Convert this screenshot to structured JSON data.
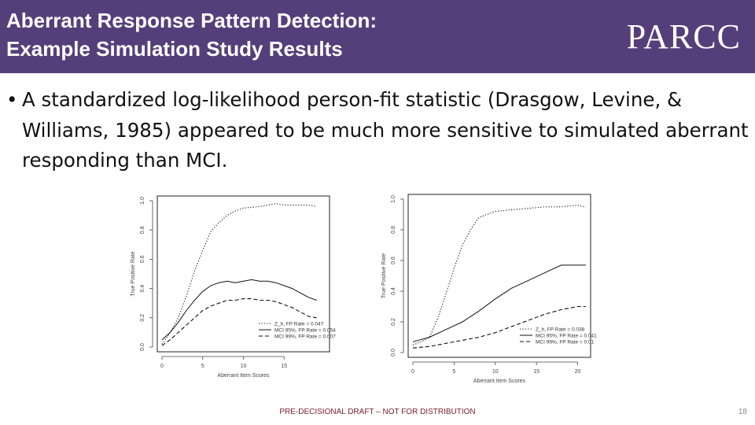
{
  "header": {
    "title_line1": "Aberrant Response Pattern Detection:",
    "title_line2": "Example Simulation Study Results",
    "logo": "PARCC",
    "bg_color": "#543f7a"
  },
  "bullet": {
    "mark": "•",
    "text": "A standardized log-likelihood person-fit statistic (Drasgow, Levine, & Williams, 1985) appeared to be much more sensitive to simulated aberrant responding than MCI."
  },
  "footer": {
    "note": "PRE-DECISIONAL DRAFT – NOT FOR DISTRIBUTION",
    "page_number": "18"
  },
  "chart_data": [
    {
      "type": "line",
      "title": "",
      "xlabel": "Aberrant Item Scores",
      "ylabel": "True Positive Rate",
      "xlim": [
        0,
        20
      ],
      "ylim": [
        0,
        1.0
      ],
      "x_ticks": [
        0,
        5,
        10,
        15
      ],
      "y_ticks": [
        0.0,
        0.2,
        0.4,
        0.6,
        0.8,
        1.0
      ],
      "y_tick_labels": [
        "0.0",
        "0.2",
        "0.4",
        "0.6",
        "0.8",
        "1.0"
      ],
      "legend_position": "bottom-right",
      "series": [
        {
          "name": "Z_h, FP Rate = 0.047",
          "style": "dotted",
          "x": [
            0,
            1,
            2,
            3,
            4,
            5,
            6,
            7,
            8,
            9,
            10,
            12,
            14,
            15,
            16,
            18,
            19
          ],
          "y": [
            0.02,
            0.1,
            0.2,
            0.35,
            0.52,
            0.66,
            0.79,
            0.85,
            0.9,
            0.93,
            0.95,
            0.96,
            0.98,
            0.97,
            0.97,
            0.97,
            0.96
          ]
        },
        {
          "name": "MCI 95%, FP Rate = 0.054",
          "style": "solid",
          "x": [
            0,
            1,
            2,
            3,
            4,
            5,
            6,
            7,
            8,
            9,
            10,
            11,
            12,
            13,
            14,
            15,
            16,
            17,
            18,
            19
          ],
          "y": [
            0.05,
            0.1,
            0.17,
            0.25,
            0.32,
            0.38,
            0.42,
            0.44,
            0.45,
            0.44,
            0.45,
            0.46,
            0.45,
            0.45,
            0.44,
            0.42,
            0.4,
            0.37,
            0.34,
            0.32
          ]
        },
        {
          "name": "MCI 99%, FP Rate = 0.007",
          "style": "dashed",
          "x": [
            0,
            1,
            2,
            3,
            4,
            5,
            6,
            7,
            8,
            9,
            10,
            11,
            12,
            13,
            14,
            15,
            16,
            17,
            18,
            19
          ],
          "y": [
            0.01,
            0.05,
            0.1,
            0.15,
            0.2,
            0.25,
            0.28,
            0.3,
            0.32,
            0.32,
            0.33,
            0.33,
            0.32,
            0.32,
            0.31,
            0.29,
            0.27,
            0.24,
            0.21,
            0.2
          ]
        }
      ]
    },
    {
      "type": "line",
      "title": "",
      "xlabel": "Aberrant Item Scores",
      "ylabel": "True Positive Rate",
      "xlim": [
        0,
        21
      ],
      "ylim": [
        0,
        1.0
      ],
      "x_ticks": [
        0,
        5,
        10,
        15,
        20
      ],
      "y_ticks": [
        0.0,
        0.2,
        0.4,
        0.6,
        0.8,
        1.0
      ],
      "y_tick_labels": [
        "0.0",
        "0.2",
        "0.4",
        "0.6",
        "0.8",
        "1.0"
      ],
      "legend_position": "bottom-right",
      "series": [
        {
          "name": "Z_h, FP Rate = 0.038",
          "style": "dotted",
          "x": [
            0,
            1,
            2,
            3,
            4,
            5,
            6,
            7,
            8,
            9,
            10,
            12,
            14,
            16,
            18,
            20,
            21
          ],
          "y": [
            0.05,
            0.07,
            0.1,
            0.22,
            0.38,
            0.55,
            0.7,
            0.8,
            0.88,
            0.9,
            0.92,
            0.93,
            0.94,
            0.95,
            0.95,
            0.96,
            0.95
          ]
        },
        {
          "name": "MCI 95%, FP Rate = 0.041",
          "style": "solid",
          "x": [
            0,
            2,
            4,
            6,
            8,
            10,
            12,
            14,
            16,
            18,
            20,
            21
          ],
          "y": [
            0.07,
            0.1,
            0.15,
            0.2,
            0.27,
            0.35,
            0.42,
            0.47,
            0.52,
            0.57,
            0.57,
            0.57
          ]
        },
        {
          "name": "MCI 99%, FP Rate = 0.01",
          "style": "dashed",
          "x": [
            0,
            2,
            4,
            6,
            8,
            10,
            12,
            14,
            16,
            18,
            20,
            21
          ],
          "y": [
            0.03,
            0.04,
            0.06,
            0.08,
            0.1,
            0.13,
            0.17,
            0.21,
            0.25,
            0.28,
            0.3,
            0.3
          ]
        }
      ]
    }
  ]
}
